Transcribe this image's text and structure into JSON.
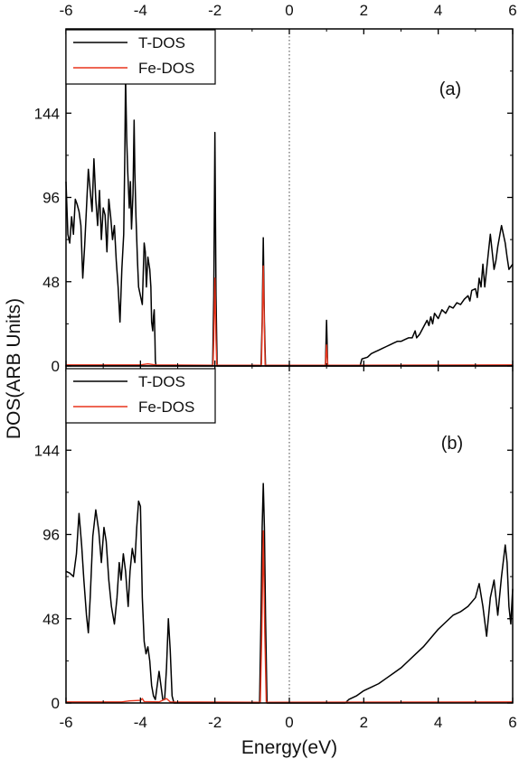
{
  "chart_data": [
    {
      "type": "line",
      "panel_label": "(a)",
      "xlim": [
        -6,
        6
      ],
      "ylim": [
        0,
        192
      ],
      "x_ticks": [
        -6,
        -4,
        -2,
        0,
        2,
        4,
        6
      ],
      "y_ticks": [
        0,
        48,
        96,
        144
      ],
      "fermi_level_line": 0,
      "legend": {
        "placement": "top-left",
        "entries": [
          "T-DOS",
          "Fe-DOS"
        ]
      },
      "series": [
        {
          "name": "T-DOS",
          "color": "#000000",
          "points": [
            [
              -6.0,
              105
            ],
            [
              -5.95,
              75
            ],
            [
              -5.9,
              70
            ],
            [
              -5.85,
              85
            ],
            [
              -5.8,
              75
            ],
            [
              -5.75,
              95
            ],
            [
              -5.7,
              92
            ],
            [
              -5.65,
              88
            ],
            [
              -5.6,
              80
            ],
            [
              -5.55,
              50
            ],
            [
              -5.5,
              68
            ],
            [
              -5.45,
              90
            ],
            [
              -5.4,
              112
            ],
            [
              -5.35,
              100
            ],
            [
              -5.3,
              88
            ],
            [
              -5.25,
              118
            ],
            [
              -5.2,
              95
            ],
            [
              -5.15,
              80
            ],
            [
              -5.1,
              100
            ],
            [
              -5.05,
              72
            ],
            [
              -5.0,
              90
            ],
            [
              -4.95,
              86
            ],
            [
              -4.9,
              65
            ],
            [
              -4.85,
              95
            ],
            [
              -4.8,
              85
            ],
            [
              -4.75,
              72
            ],
            [
              -4.7,
              80
            ],
            [
              -4.65,
              60
            ],
            [
              -4.6,
              45
            ],
            [
              -4.55,
              25
            ],
            [
              -4.5,
              55
            ],
            [
              -4.45,
              75
            ],
            [
              -4.42,
              120
            ],
            [
              -4.4,
              165
            ],
            [
              -4.37,
              130
            ],
            [
              -4.34,
              110
            ],
            [
              -4.3,
              90
            ],
            [
              -4.27,
              105
            ],
            [
              -4.24,
              78
            ],
            [
              -4.2,
              98
            ],
            [
              -4.17,
              140
            ],
            [
              -4.15,
              110
            ],
            [
              -4.12,
              85
            ],
            [
              -4.08,
              60
            ],
            [
              -4.05,
              45
            ],
            [
              -4.0,
              40
            ],
            [
              -3.95,
              35
            ],
            [
              -3.9,
              70
            ],
            [
              -3.87,
              65
            ],
            [
              -3.84,
              45
            ],
            [
              -3.8,
              62
            ],
            [
              -3.75,
              55
            ],
            [
              -3.72,
              45
            ],
            [
              -3.7,
              25
            ],
            [
              -3.67,
              20
            ],
            [
              -3.65,
              28
            ],
            [
              -3.63,
              32
            ],
            [
              -3.61,
              15
            ],
            [
              -3.6,
              3
            ],
            [
              -3.58,
              0
            ],
            [
              -2.06,
              0
            ],
            [
              -2.03,
              40
            ],
            [
              -2.0,
              133
            ],
            [
              -1.97,
              40
            ],
            [
              -1.94,
              0
            ],
            [
              -0.76,
              0
            ],
            [
              -0.73,
              25
            ],
            [
              -0.7,
              73
            ],
            [
              -0.67,
              25
            ],
            [
              -0.64,
              0
            ],
            [
              0.97,
              0
            ],
            [
              1.0,
              26
            ],
            [
              1.03,
              0
            ],
            [
              1.9,
              0
            ],
            [
              1.95,
              4
            ],
            [
              2.1,
              5
            ],
            [
              2.2,
              7
            ],
            [
              2.3,
              8
            ],
            [
              2.4,
              9
            ],
            [
              2.5,
              10
            ],
            [
              2.6,
              11
            ],
            [
              2.7,
              12
            ],
            [
              2.8,
              13
            ],
            [
              2.9,
              14
            ],
            [
              3.0,
              14
            ],
            [
              3.1,
              15
            ],
            [
              3.2,
              16
            ],
            [
              3.3,
              16
            ],
            [
              3.38,
              20
            ],
            [
              3.42,
              16
            ],
            [
              3.5,
              18
            ],
            [
              3.6,
              22
            ],
            [
              3.7,
              26
            ],
            [
              3.75,
              23
            ],
            [
              3.8,
              28
            ],
            [
              3.85,
              24
            ],
            [
              3.9,
              30
            ],
            [
              4.0,
              27
            ],
            [
              4.1,
              32
            ],
            [
              4.2,
              30
            ],
            [
              4.3,
              34
            ],
            [
              4.4,
              33
            ],
            [
              4.5,
              36
            ],
            [
              4.6,
              35
            ],
            [
              4.7,
              38
            ],
            [
              4.8,
              40
            ],
            [
              4.85,
              37
            ],
            [
              4.9,
              43
            ],
            [
              5.0,
              44
            ],
            [
              5.05,
              39
            ],
            [
              5.1,
              50
            ],
            [
              5.15,
              45
            ],
            [
              5.2,
              58
            ],
            [
              5.25,
              45
            ],
            [
              5.3,
              55
            ],
            [
              5.35,
              65
            ],
            [
              5.4,
              75
            ],
            [
              5.45,
              65
            ],
            [
              5.5,
              55
            ],
            [
              5.55,
              60
            ],
            [
              5.6,
              68
            ],
            [
              5.7,
              80
            ],
            [
              5.75,
              75
            ],
            [
              5.8,
              70
            ],
            [
              5.85,
              62
            ],
            [
              5.9,
              55
            ],
            [
              6.0,
              58
            ]
          ]
        },
        {
          "name": "Fe-DOS",
          "color": "#e8341c",
          "points": [
            [
              -6.0,
              0.6
            ],
            [
              -4.0,
              0.6
            ],
            [
              -3.8,
              1.2
            ],
            [
              -3.6,
              0.6
            ],
            [
              -2.05,
              0.4
            ],
            [
              -2.03,
              15
            ],
            [
              -2.0,
              50
            ],
            [
              -1.97,
              15
            ],
            [
              -1.95,
              0.4
            ],
            [
              -0.75,
              0.4
            ],
            [
              -0.73,
              20
            ],
            [
              -0.7,
              57
            ],
            [
              -0.67,
              20
            ],
            [
              -0.65,
              0.4
            ],
            [
              0.97,
              0.4
            ],
            [
              1.0,
              12
            ],
            [
              1.03,
              0.4
            ],
            [
              6.0,
              0.6
            ]
          ]
        }
      ]
    },
    {
      "type": "line",
      "panel_label": "(b)",
      "xlim": [
        -6,
        6
      ],
      "ylim": [
        0,
        192
      ],
      "x_ticks": [
        -6,
        -4,
        -2,
        0,
        2,
        4,
        6
      ],
      "x_tick_labels": [
        "-6",
        "-4",
        "-2",
        "0",
        "2",
        "4",
        "6"
      ],
      "y_ticks": [
        0,
        48,
        96,
        144
      ],
      "xlabel": "Energy(eV)",
      "ylabel": "DOS(ARB Units)",
      "fermi_level_line": 0,
      "legend": {
        "placement": "top-left",
        "entries": [
          "T-DOS",
          "Fe-DOS"
        ]
      },
      "series": [
        {
          "name": "T-DOS",
          "color": "#000000",
          "points": [
            [
              -6.0,
              75
            ],
            [
              -5.9,
              74
            ],
            [
              -5.8,
              72
            ],
            [
              -5.72,
              85
            ],
            [
              -5.65,
              108
            ],
            [
              -5.58,
              90
            ],
            [
              -5.52,
              70
            ],
            [
              -5.45,
              50
            ],
            [
              -5.4,
              40
            ],
            [
              -5.35,
              60
            ],
            [
              -5.28,
              95
            ],
            [
              -5.2,
              110
            ],
            [
              -5.12,
              98
            ],
            [
              -5.05,
              80
            ],
            [
              -4.98,
              100
            ],
            [
              -4.92,
              92
            ],
            [
              -4.85,
              70
            ],
            [
              -4.78,
              55
            ],
            [
              -4.7,
              45
            ],
            [
              -4.63,
              60
            ],
            [
              -4.57,
              80
            ],
            [
              -4.52,
              70
            ],
            [
              -4.46,
              85
            ],
            [
              -4.4,
              75
            ],
            [
              -4.33,
              55
            ],
            [
              -4.28,
              75
            ],
            [
              -4.22,
              88
            ],
            [
              -4.15,
              80
            ],
            [
              -4.1,
              100
            ],
            [
              -4.05,
              115
            ],
            [
              -4.0,
              112
            ],
            [
              -3.95,
              60
            ],
            [
              -3.9,
              35
            ],
            [
              -3.85,
              28
            ],
            [
              -3.8,
              32
            ],
            [
              -3.75,
              24
            ],
            [
              -3.7,
              10
            ],
            [
              -3.65,
              4
            ],
            [
              -3.6,
              2
            ],
            [
              -3.55,
              10
            ],
            [
              -3.5,
              18
            ],
            [
              -3.45,
              10
            ],
            [
              -3.4,
              2
            ],
            [
              -3.35,
              2
            ],
            [
              -3.3,
              20
            ],
            [
              -3.25,
              48
            ],
            [
              -3.2,
              30
            ],
            [
              -3.15,
              4
            ],
            [
              -3.1,
              0
            ],
            [
              -0.8,
              0
            ],
            [
              -0.76,
              50
            ],
            [
              -0.73,
              100
            ],
            [
              -0.7,
              125
            ],
            [
              -0.67,
              100
            ],
            [
              -0.64,
              50
            ],
            [
              -0.6,
              0
            ],
            [
              1.5,
              0
            ],
            [
              1.6,
              2
            ],
            [
              1.8,
              4
            ],
            [
              2.0,
              7
            ],
            [
              2.2,
              9
            ],
            [
              2.4,
              11
            ],
            [
              2.6,
              14
            ],
            [
              2.8,
              17
            ],
            [
              3.0,
              20
            ],
            [
              3.2,
              24
            ],
            [
              3.4,
              28
            ],
            [
              3.6,
              32
            ],
            [
              3.8,
              37
            ],
            [
              4.0,
              42
            ],
            [
              4.2,
              46
            ],
            [
              4.4,
              50
            ],
            [
              4.6,
              52
            ],
            [
              4.8,
              55
            ],
            [
              5.0,
              60
            ],
            [
              5.1,
              68
            ],
            [
              5.2,
              55
            ],
            [
              5.3,
              38
            ],
            [
              5.4,
              60
            ],
            [
              5.5,
              70
            ],
            [
              5.6,
              50
            ],
            [
              5.7,
              72
            ],
            [
              5.8,
              90
            ],
            [
              5.85,
              80
            ],
            [
              5.9,
              55
            ],
            [
              5.95,
              45
            ],
            [
              6.0,
              65
            ]
          ]
        },
        {
          "name": "Fe-DOS",
          "color": "#e8341c",
          "points": [
            [
              -6.0,
              0.6
            ],
            [
              -4.5,
              0.6
            ],
            [
              -4.3,
              1.2
            ],
            [
              -4.0,
              1.5
            ],
            [
              -3.95,
              2.5
            ],
            [
              -3.9,
              0.8
            ],
            [
              -3.5,
              0.6
            ],
            [
              -3.3,
              2.5
            ],
            [
              -3.2,
              0.6
            ],
            [
              -0.78,
              0.4
            ],
            [
              -0.74,
              40
            ],
            [
              -0.7,
              98
            ],
            [
              -0.66,
              40
            ],
            [
              -0.62,
              0.4
            ],
            [
              6.0,
              0.6
            ]
          ]
        }
      ]
    }
  ]
}
